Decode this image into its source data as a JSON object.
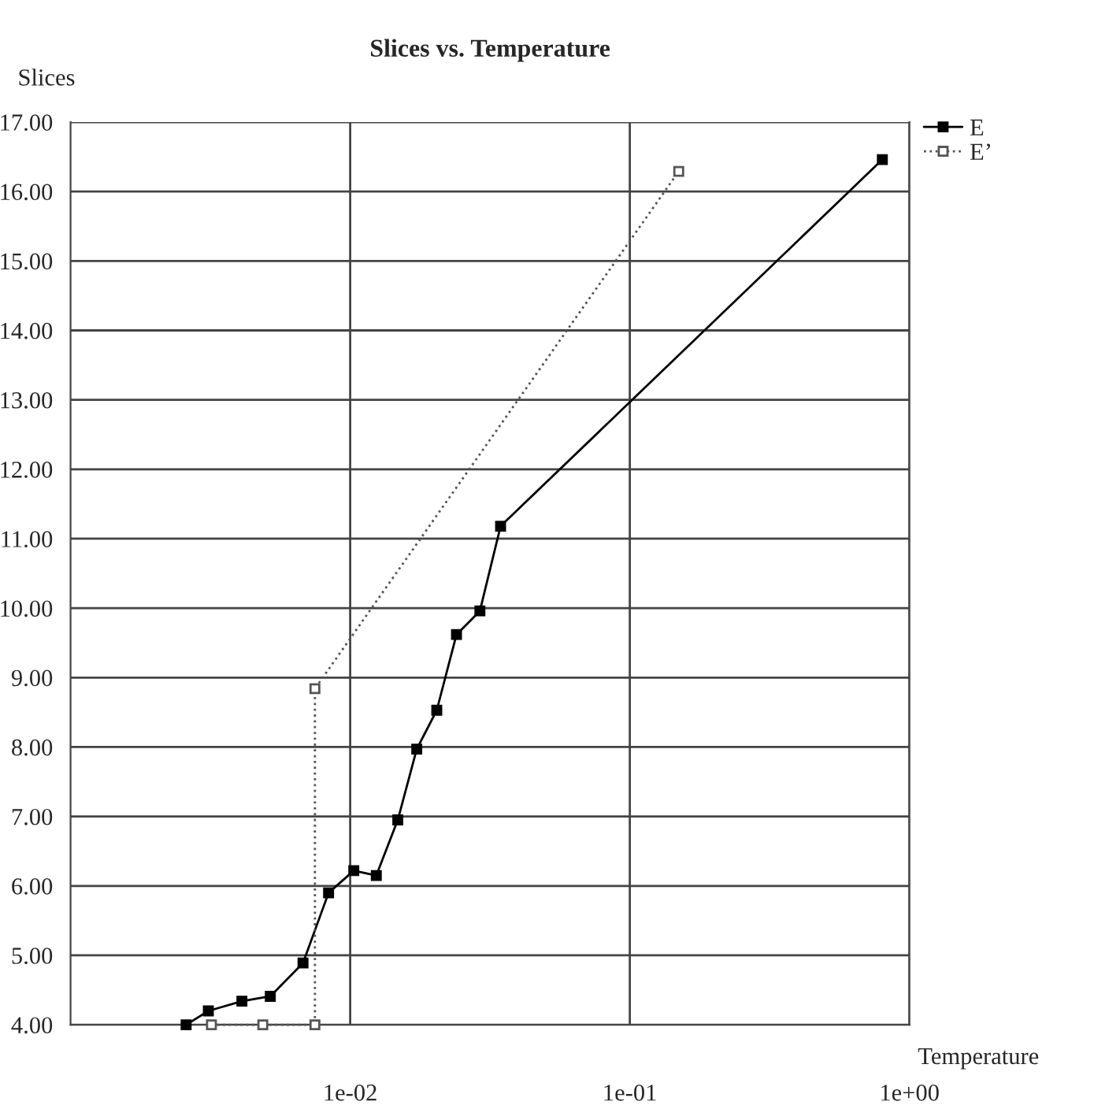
{
  "chart_data": {
    "type": "line",
    "title": "Slices vs. Temperature",
    "xlabel": "Temperature",
    "ylabel": "Slices",
    "log": "x",
    "xlim": [
      0.001,
      1
    ],
    "xticks": [
      {
        "value": 0.01,
        "label": "1e-02"
      },
      {
        "value": 0.1,
        "label": "1e-01"
      },
      {
        "value": 1,
        "label": "1e+00"
      }
    ],
    "ylim": [
      4,
      17
    ],
    "yticks": [
      {
        "value": 4,
        "label": "4.00"
      },
      {
        "value": 5,
        "label": "5.00"
      },
      {
        "value": 6,
        "label": "6.00"
      },
      {
        "value": 7,
        "label": "7.00"
      },
      {
        "value": 8,
        "label": "8.00"
      },
      {
        "value": 9,
        "label": "9.00"
      },
      {
        "value": 10,
        "label": "10.00"
      },
      {
        "value": 11,
        "label": "11.00"
      },
      {
        "value": 12,
        "label": "12.00"
      },
      {
        "value": 13,
        "label": "13.00"
      },
      {
        "value": 14,
        "label": "14.00"
      },
      {
        "value": 15,
        "label": "15.00"
      },
      {
        "value": 16,
        "label": "16.00"
      },
      {
        "value": 17,
        "label": "17.00"
      }
    ],
    "grid": true,
    "legend": "top right",
    "marker": "square",
    "series": [
      {
        "name": "E",
        "color": "#000000",
        "line_style": "solid",
        "x": [
          0.00259,
          0.00311,
          0.0041,
          0.00518,
          0.00678,
          0.00837,
          0.0103,
          0.0124,
          0.0148,
          0.0173,
          0.0204,
          0.024,
          0.0291,
          0.0345,
          0.8
        ],
        "values": [
          4.0,
          4.2,
          4.34,
          4.41,
          4.89,
          5.9,
          6.22,
          6.15,
          6.95,
          7.97,
          8.53,
          9.62,
          9.96,
          11.18,
          16.46
        ]
      },
      {
        "name": "E’",
        "color": "#555555",
        "line_style": "dotted",
        "x": [
          0.00319,
          0.00487,
          0.00748,
          0.00748,
          0.1496
        ],
        "values": [
          4.0,
          4.0,
          4.0,
          8.84,
          16.29
        ]
      }
    ]
  }
}
